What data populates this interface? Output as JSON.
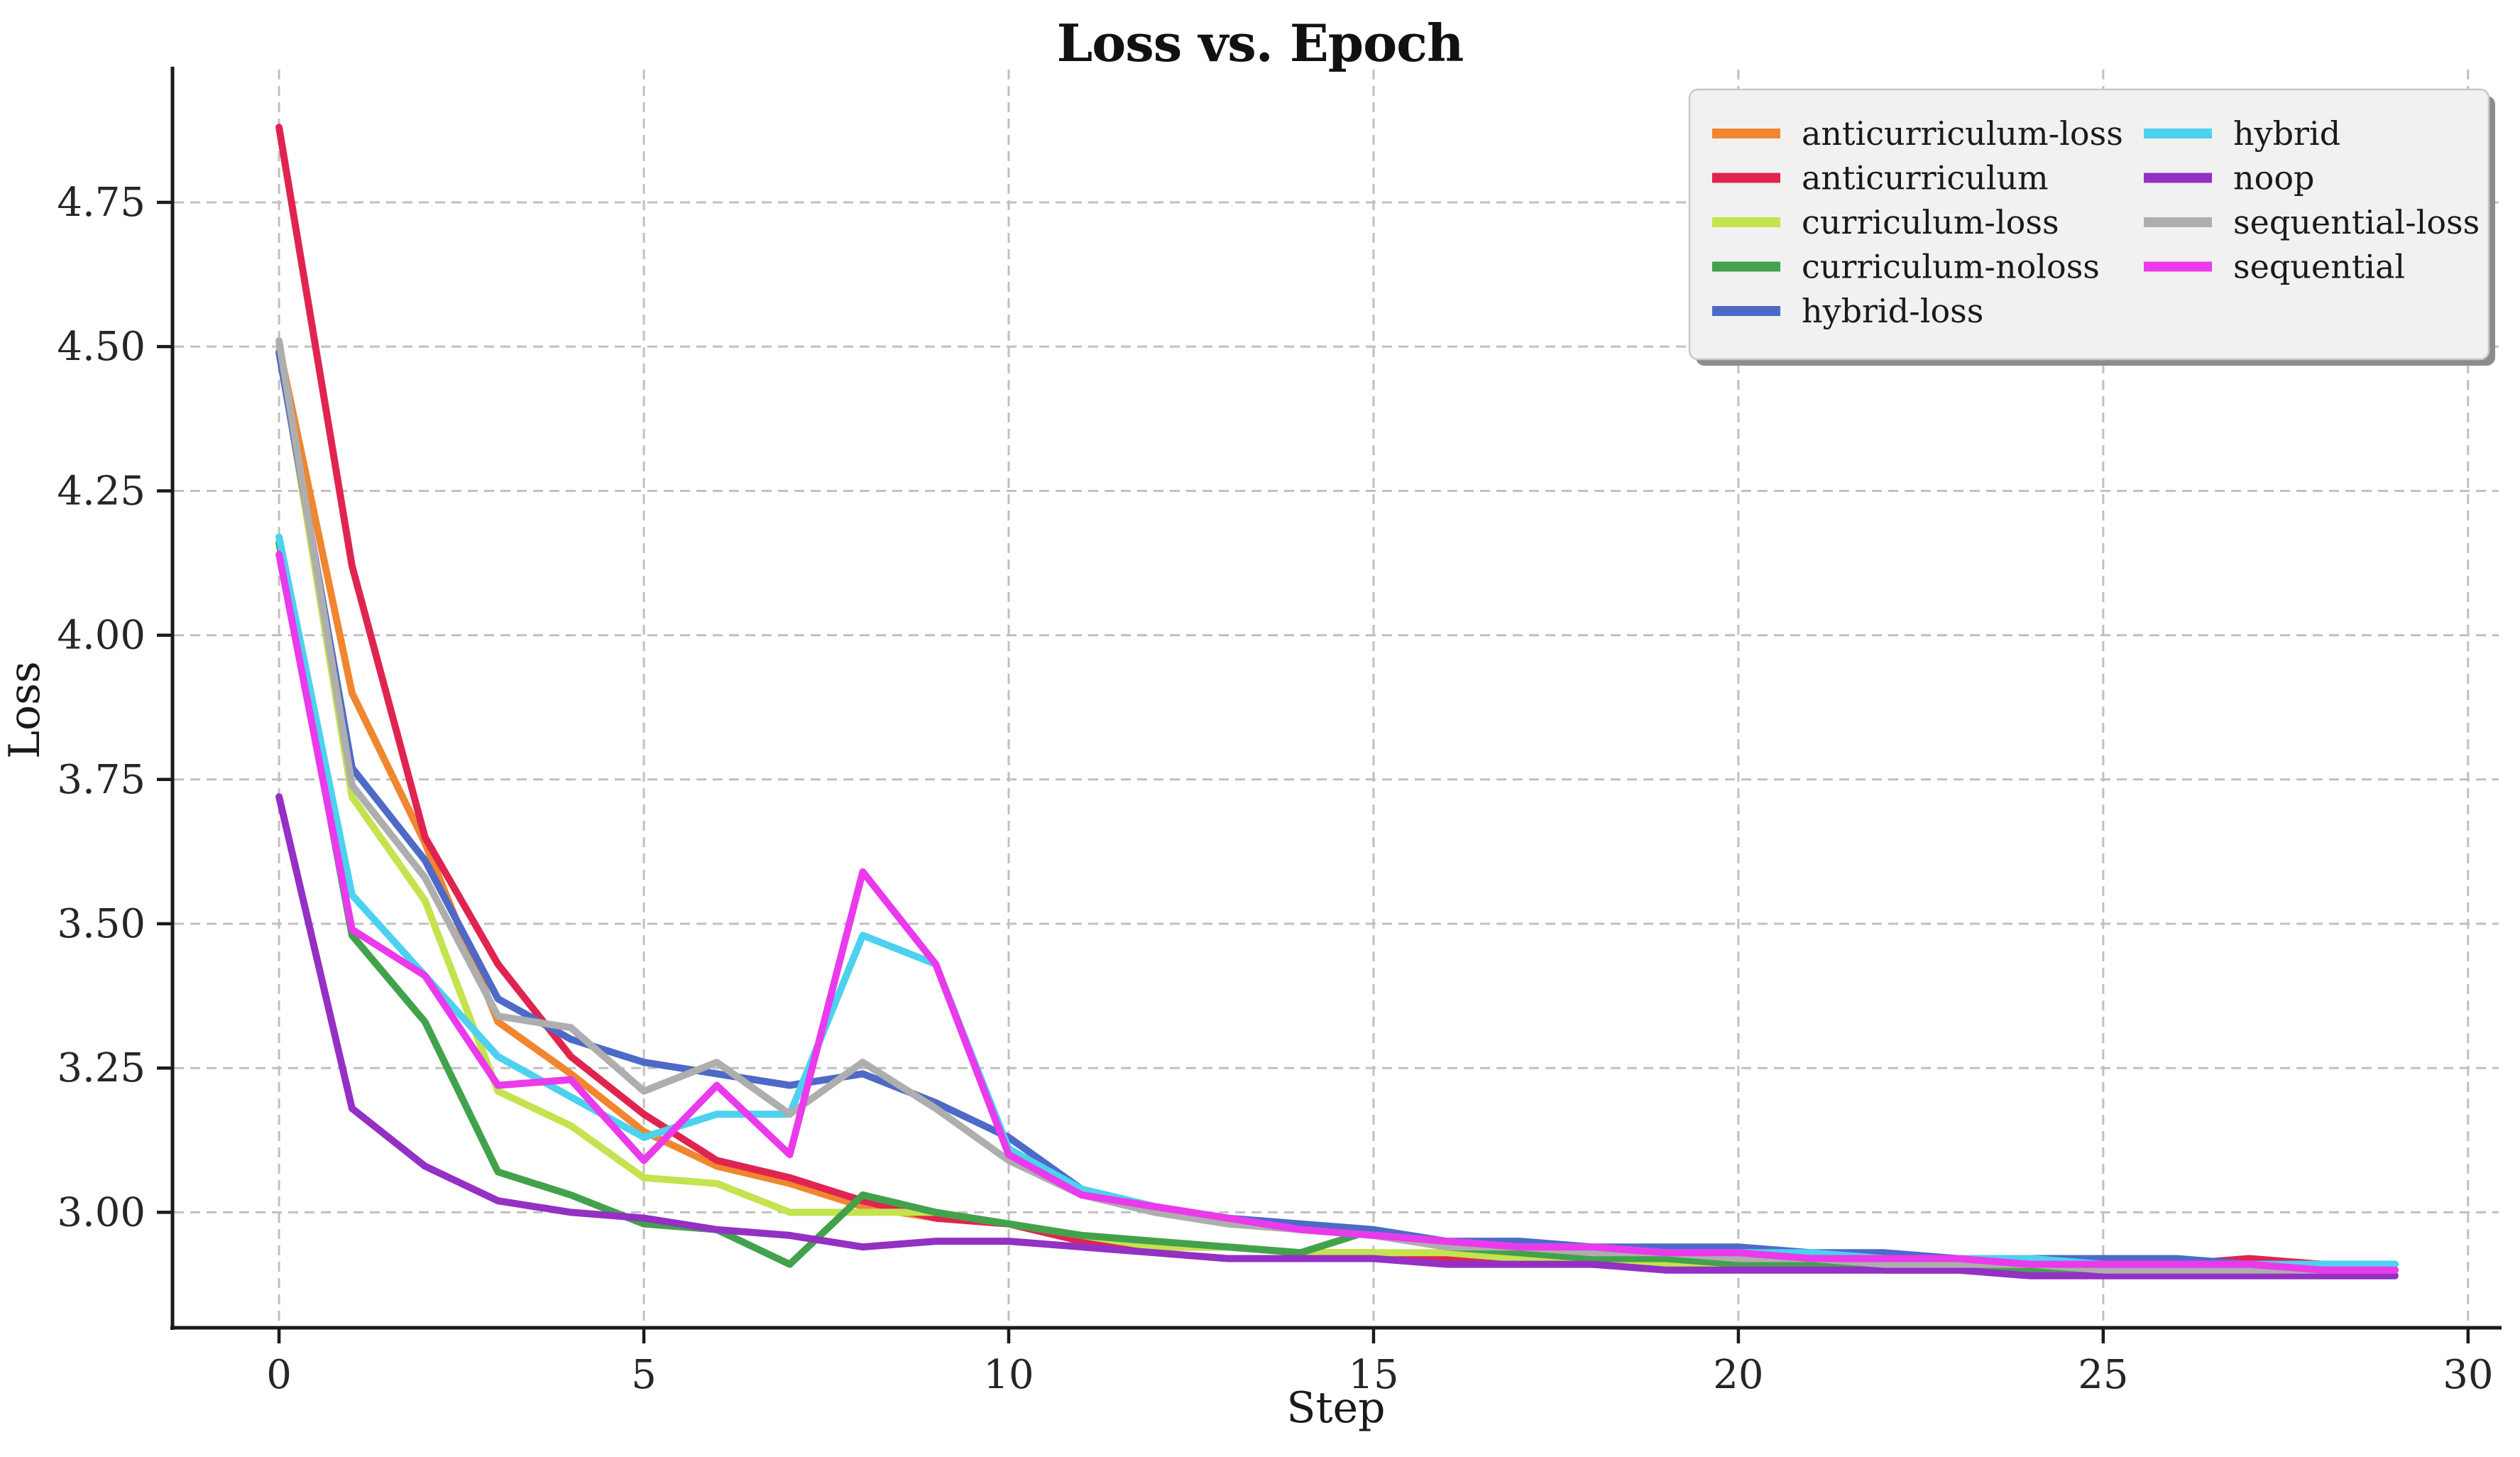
{
  "title": "Loss vs. Epoch",
  "chart_data": {
    "type": "line",
    "title": "Loss vs. Epoch",
    "xlabel": "Step",
    "ylabel": "Loss",
    "xlim": [
      -1.46,
      30.42
    ],
    "ylim": [
      2.8,
      4.98
    ],
    "grid": true,
    "grid_color": "#c0c0c0",
    "axis_color": "#1a1a1a",
    "tick_label_color": "#262626",
    "legend_position": "upper right",
    "legend_bg": "#f1f1f1",
    "legend_border": "#c9c9c9",
    "legend_shadow": "#8c8c8c",
    "xticks": {
      "values": [
        0,
        5,
        10,
        15,
        20,
        25,
        30
      ],
      "labels": [
        "0",
        "5",
        "10",
        "15",
        "20",
        "25",
        "30"
      ]
    },
    "yticks": {
      "values": [
        3.0,
        3.25,
        3.5,
        3.75,
        4.0,
        4.25,
        4.5,
        4.75
      ],
      "labels": [
        "3.00",
        "3.25",
        "3.50",
        "3.75",
        "4.00",
        "4.25",
        "4.50",
        "4.75"
      ]
    },
    "x": [
      0,
      1,
      2,
      3,
      4,
      5,
      6,
      7,
      8,
      9,
      10,
      11,
      12,
      13,
      14,
      15,
      16,
      17,
      18,
      19,
      20,
      21,
      22,
      23,
      24,
      25,
      26,
      27,
      28,
      29
    ],
    "series": [
      {
        "name": "anticurriculum-loss",
        "color": "#f0862f",
        "values": [
          4.5,
          3.9,
          3.64,
          3.33,
          3.24,
          3.14,
          3.08,
          3.05,
          3.01,
          2.99,
          2.98,
          2.96,
          2.94,
          2.94,
          2.93,
          2.93,
          2.92,
          2.92,
          2.91,
          2.91,
          2.91,
          2.91,
          2.9,
          2.9,
          2.9,
          2.9,
          2.9,
          2.9,
          2.9,
          2.9
        ]
      },
      {
        "name": "anticurriculum",
        "color": "#e02450",
        "values": [
          4.88,
          4.12,
          3.65,
          3.43,
          3.27,
          3.17,
          3.09,
          3.06,
          3.02,
          2.99,
          2.98,
          2.95,
          2.94,
          2.94,
          2.93,
          2.92,
          2.92,
          2.92,
          2.91,
          2.91,
          2.91,
          2.91,
          2.9,
          2.9,
          2.9,
          2.9,
          2.91,
          2.92,
          2.91,
          2.9
        ]
      },
      {
        "name": "curriculum-loss",
        "color": "#c4e34e",
        "values": [
          4.5,
          3.72,
          3.54,
          3.21,
          3.15,
          3.06,
          3.05,
          3.0,
          3.0,
          3.0,
          2.98,
          2.96,
          2.94,
          2.94,
          2.93,
          2.93,
          2.93,
          2.92,
          2.92,
          2.91,
          2.91,
          2.91,
          2.91,
          2.9,
          2.9,
          2.9,
          2.9,
          2.9,
          2.9,
          2.9
        ]
      },
      {
        "name": "curriculum-noloss",
        "color": "#42a24c",
        "values": [
          4.16,
          3.48,
          3.33,
          3.07,
          3.03,
          2.98,
          2.97,
          2.91,
          3.03,
          3.0,
          2.98,
          2.96,
          2.95,
          2.94,
          2.93,
          2.97,
          2.94,
          2.93,
          2.92,
          2.92,
          2.91,
          2.91,
          2.91,
          2.91,
          2.9,
          2.9,
          2.9,
          2.9,
          2.9,
          2.9
        ]
      },
      {
        "name": "hybrid-loss",
        "color": "#4d6ac6",
        "values": [
          4.49,
          3.77,
          3.61,
          3.37,
          3.3,
          3.26,
          3.24,
          3.22,
          3.24,
          3.19,
          3.13,
          3.04,
          3.01,
          2.99,
          2.98,
          2.97,
          2.95,
          2.95,
          2.94,
          2.94,
          2.94,
          2.93,
          2.93,
          2.92,
          2.92,
          2.92,
          2.92,
          2.91,
          2.91,
          2.91
        ]
      },
      {
        "name": "hybrid",
        "color": "#4cd2ee",
        "values": [
          4.17,
          3.55,
          3.41,
          3.27,
          3.2,
          3.13,
          3.17,
          3.17,
          3.48,
          3.43,
          3.11,
          3.04,
          3.01,
          2.99,
          2.97,
          2.96,
          2.95,
          2.94,
          2.94,
          2.93,
          2.93,
          2.93,
          2.92,
          2.92,
          2.92,
          2.91,
          2.91,
          2.91,
          2.91,
          2.91
        ]
      },
      {
        "name": "noop",
        "color": "#9430c4",
        "values": [
          3.72,
          3.18,
          3.08,
          3.02,
          3.0,
          2.99,
          2.97,
          2.96,
          2.94,
          2.95,
          2.95,
          2.94,
          2.93,
          2.92,
          2.92,
          2.92,
          2.91,
          2.91,
          2.91,
          2.9,
          2.9,
          2.9,
          2.9,
          2.9,
          2.89,
          2.89,
          2.89,
          2.89,
          2.89,
          2.89
        ]
      },
      {
        "name": "sequential-loss",
        "color": "#aeaeae",
        "values": [
          4.51,
          3.74,
          3.58,
          3.34,
          3.32,
          3.21,
          3.26,
          3.17,
          3.26,
          3.18,
          3.09,
          3.03,
          3.0,
          2.98,
          2.97,
          2.96,
          2.94,
          2.94,
          2.93,
          2.93,
          2.92,
          2.92,
          2.91,
          2.91,
          2.91,
          2.9,
          2.9,
          2.9,
          2.9,
          2.9
        ]
      },
      {
        "name": "sequential",
        "color": "#ea3aec",
        "values": [
          4.14,
          3.49,
          3.41,
          3.22,
          3.23,
          3.09,
          3.22,
          3.1,
          3.59,
          3.43,
          3.1,
          3.03,
          3.01,
          2.99,
          2.97,
          2.96,
          2.95,
          2.94,
          2.94,
          2.93,
          2.93,
          2.92,
          2.92,
          2.92,
          2.91,
          2.91,
          2.91,
          2.91,
          2.9,
          2.9
        ]
      }
    ],
    "legend_columns": [
      [
        "anticurriculum-loss",
        "anticurriculum",
        "curriculum-loss",
        "curriculum-noloss",
        "hybrid-loss"
      ],
      [
        "hybrid",
        "noop",
        "sequential-loss",
        "sequential"
      ]
    ]
  }
}
